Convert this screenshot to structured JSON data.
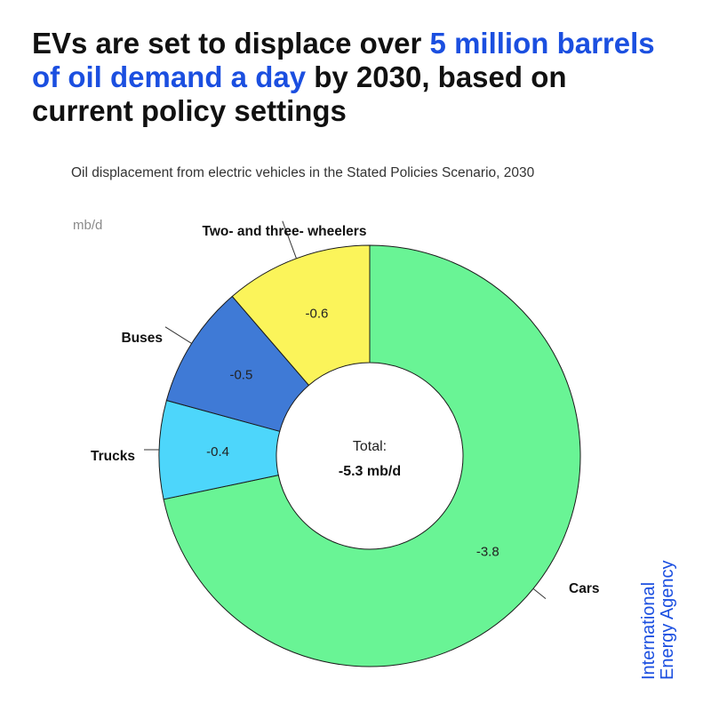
{
  "title": {
    "part1": "EVs are set to displace over ",
    "highlight": "5 million barrels of oil demand a day",
    "part2": " by 2030, based on current policy settings"
  },
  "colors": {
    "highlight": "#1b4fe0",
    "brand": "#1b4fe0"
  },
  "chart_data": {
    "type": "donut",
    "subtitle": "Oil displacement from electric vehicles in the Stated Policies Scenario, 2030",
    "unit": "mb/d",
    "center_label": "Total:",
    "center_value": "-5.3 mb/d",
    "segments": [
      {
        "name": "Cars",
        "value": -3.8,
        "label": "-3.8",
        "color": "#69f495"
      },
      {
        "name": "Trucks",
        "value": -0.4,
        "label": "-0.4",
        "color": "#4dd6fb"
      },
      {
        "name": "Buses",
        "value": -0.5,
        "label": "-0.5",
        "color": "#3f7ad6"
      },
      {
        "name": "Two- and three- wheelers",
        "value": -0.6,
        "label": "-0.6",
        "color": "#fbf45a"
      }
    ]
  },
  "brand": {
    "line1": "International",
    "line2": "Energy Agency"
  }
}
